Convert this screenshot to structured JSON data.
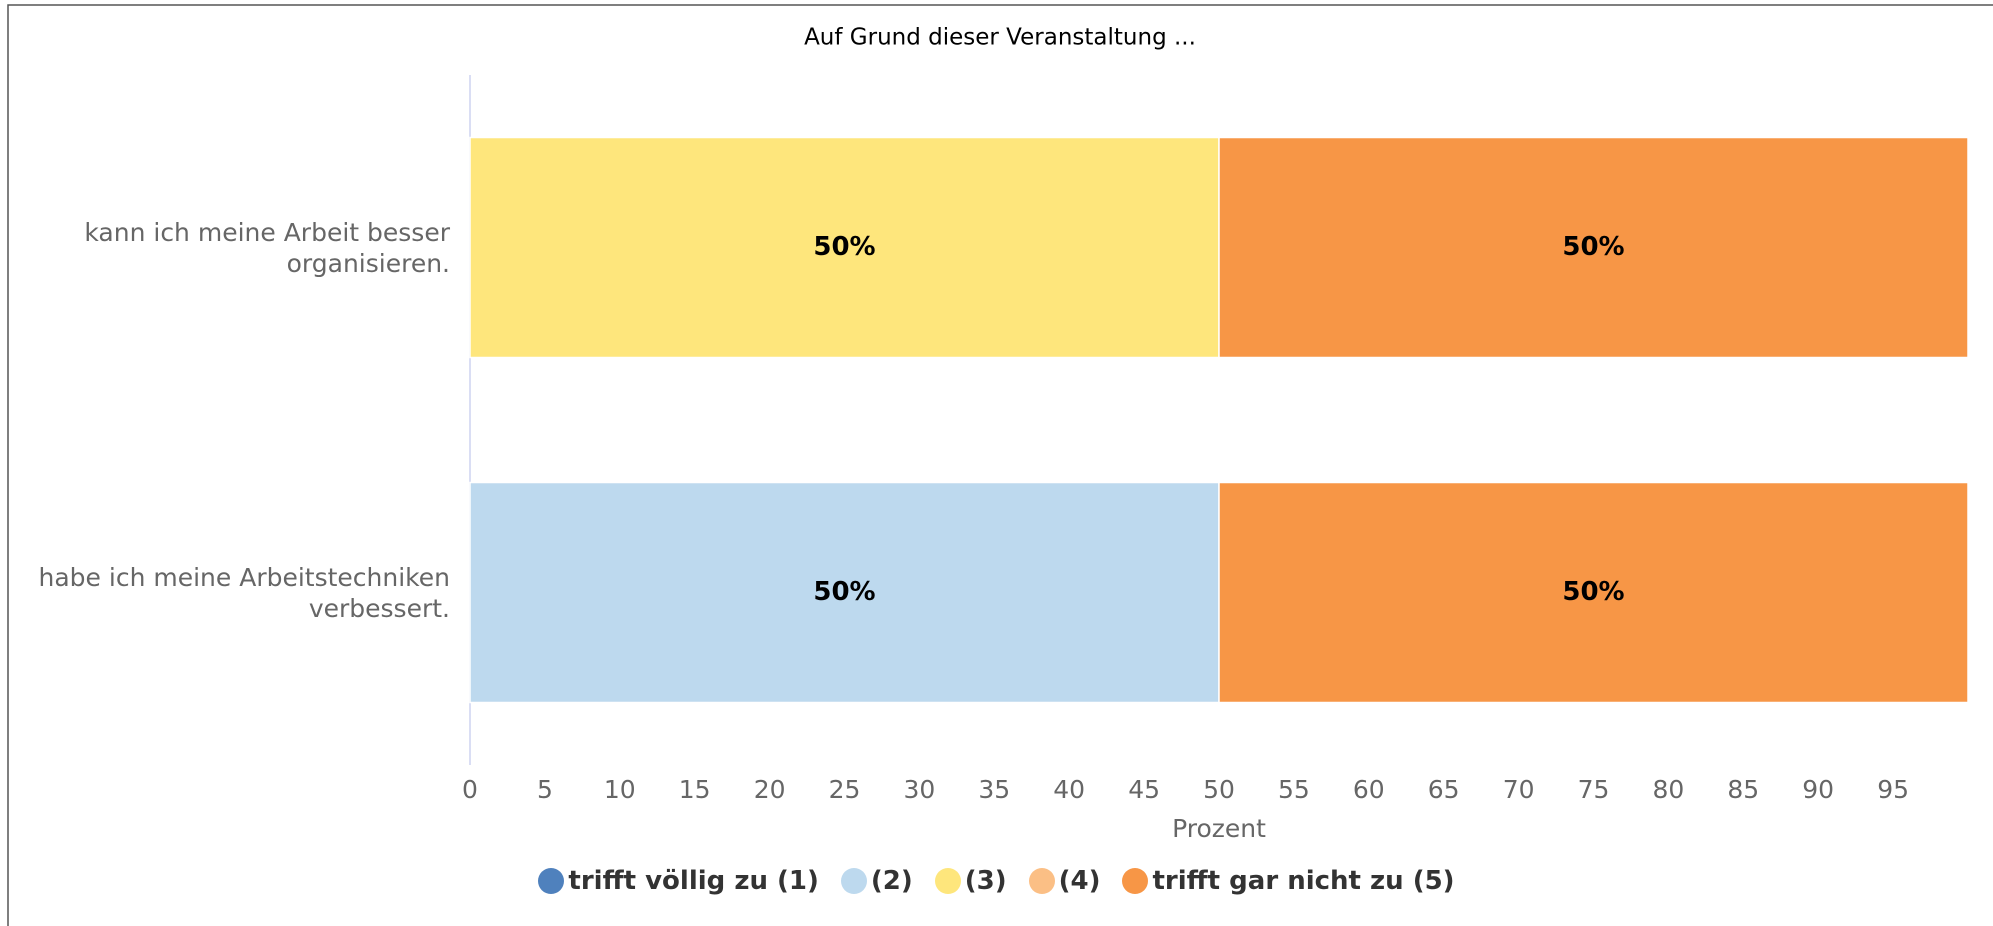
{
  "chart_data": {
    "type": "bar",
    "orientation": "horizontal",
    "stacked": true,
    "title": "Auf Grund dieser Veranstaltung ...",
    "categories": [
      "kann ich meine Arbeit besser organisieren.",
      "habe ich meine Arbeitstechniken verbessert."
    ],
    "series": [
      {
        "name": "trifft völlig zu (1)",
        "color": "#4f81bd",
        "values": [
          0,
          0
        ],
        "value_labels": [
          null,
          null
        ]
      },
      {
        "name": "(2)",
        "color": "#bdd9ee",
        "values": [
          0,
          50
        ],
        "value_labels": [
          null,
          "50%"
        ]
      },
      {
        "name": "(3)",
        "color": "#fee67c",
        "values": [
          50,
          0
        ],
        "value_labels": [
          "50%",
          null
        ]
      },
      {
        "name": "(4)",
        "color": "#fbbf85",
        "values": [
          0,
          0
        ],
        "value_labels": [
          null,
          null
        ]
      },
      {
        "name": "trifft gar nicht zu (5)",
        "color": "#f79646",
        "values": [
          50,
          50
        ],
        "value_labels": [
          "50%",
          "50%"
        ]
      }
    ],
    "xlabel": "Prozent",
    "xlim": [
      0,
      100
    ],
    "xticks": [
      0,
      5,
      10,
      15,
      20,
      25,
      30,
      35,
      40,
      45,
      50,
      55,
      60,
      65,
      70,
      75,
      80,
      85,
      90,
      95
    ],
    "legend": "bottom"
  }
}
